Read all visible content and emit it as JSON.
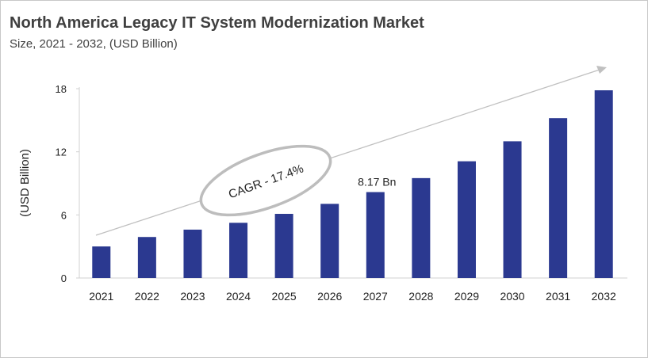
{
  "chart_data": {
    "type": "bar",
    "title": "North America Legacy IT System Modernization Market",
    "subtitle": "Size, 2021 - 2032, (USD Billion)",
    "xlabel": "",
    "ylabel": "(USD Billion)",
    "categories": [
      "2021",
      "2022",
      "2023",
      "2024",
      "2025",
      "2026",
      "2027",
      "2028",
      "2029",
      "2030",
      "2031",
      "2032"
    ],
    "values": [
      3.0,
      3.9,
      4.6,
      5.25,
      6.1,
      7.05,
      8.17,
      9.5,
      11.1,
      13.0,
      15.2,
      17.85
    ],
    "ylim": [
      0,
      18
    ],
    "yticks": [
      0,
      6,
      12,
      18
    ],
    "grid": false,
    "bar_color": "#2b3990",
    "data_labels": [
      {
        "category": "2027",
        "text": "8.17 Bn"
      }
    ],
    "annotation": "CAGR - 17.4%"
  }
}
